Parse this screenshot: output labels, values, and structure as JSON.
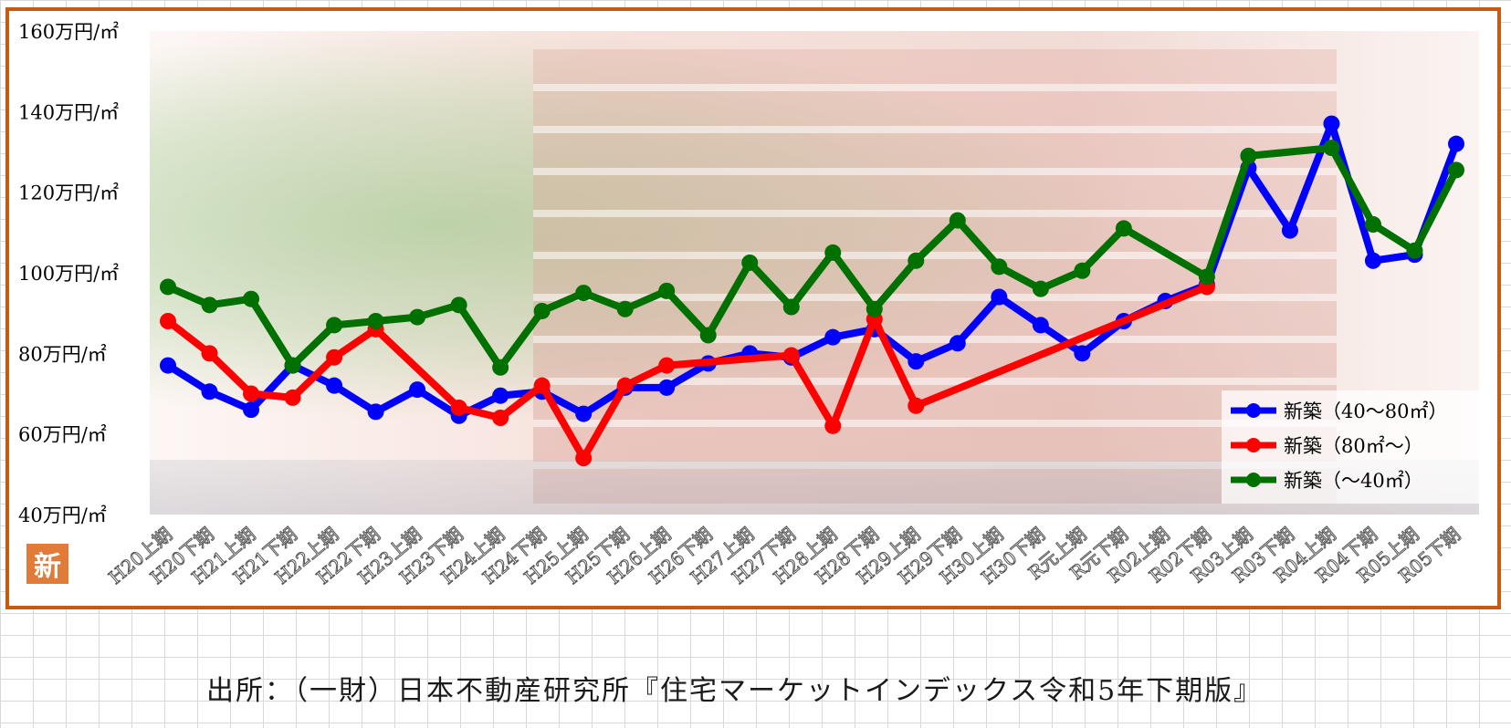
{
  "source_text": "出所：（一財）日本不動産研究所『住宅マーケットインデックス令和5年下期版』",
  "badge_text": "新",
  "chart_data": {
    "type": "line",
    "title": "",
    "xlabel": "",
    "ylabel": "",
    "ylim": [
      40,
      160
    ],
    "yticks": [
      160,
      140,
      120,
      100,
      80,
      60,
      40
    ],
    "ytick_suffix": "万円/㎡",
    "grid": false,
    "legend_position": "bottom-right",
    "categories": [
      "H20上期",
      "H20下期",
      "H21上期",
      "H21下期",
      "H22上期",
      "H22下期",
      "H23上期",
      "H23下期",
      "H24上期",
      "H24下期",
      "H25上期",
      "H25下期",
      "H26上期",
      "H26下期",
      "H27上期",
      "H27下期",
      "H28上期",
      "H28下期",
      "H29上期",
      "H29下期",
      "H30上期",
      "H30下期",
      "R元上期",
      "R元下期",
      "R02上期",
      "R02下期",
      "R03上期",
      "R03下期",
      "R04上期",
      "R04下期",
      "R05上期",
      "R05下期"
    ],
    "series": [
      {
        "name": "新築（40～80㎡）",
        "color": "#0000ff",
        "values": [
          77,
          70.5,
          66,
          77,
          72,
          65.5,
          71,
          64.5,
          69.5,
          70.5,
          65,
          71.5,
          71.5,
          77.5,
          80,
          79,
          84,
          86,
          78,
          82.5,
          94,
          87,
          80,
          88,
          93,
          97,
          126,
          110.5,
          137,
          103,
          104.5,
          132
        ]
      },
      {
        "name": "新築（80㎡～）",
        "color": "#ff0000",
        "values": [
          88,
          80,
          70,
          69,
          79,
          86,
          null,
          66.5,
          64,
          72,
          54,
          72,
          77,
          null,
          null,
          79.5,
          62,
          88.5,
          67,
          null,
          null,
          null,
          null,
          null,
          null,
          96.5,
          null,
          null,
          null,
          null,
          null,
          null
        ]
      },
      {
        "name": "新築（～40㎡）",
        "color": "#007000",
        "values": [
          96.5,
          92,
          93.5,
          77,
          87,
          88,
          89,
          92,
          76.5,
          90.5,
          95,
          91,
          95.5,
          84.5,
          102.5,
          91.5,
          105,
          91,
          103,
          113,
          101.5,
          96,
          100.5,
          111,
          null,
          99,
          129,
          null,
          131,
          112,
          105.5,
          125.5
        ]
      }
    ]
  }
}
